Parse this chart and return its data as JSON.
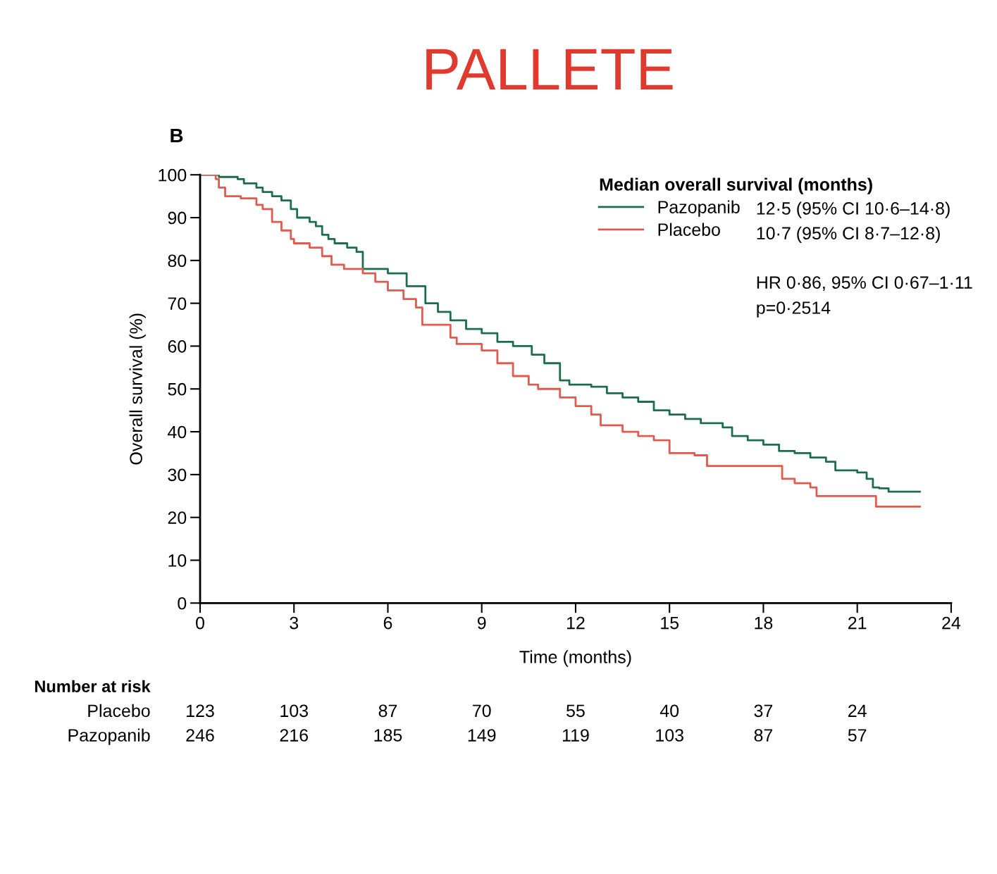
{
  "chart_data": {
    "type": "step",
    "title": "PALLETE",
    "xlabel": "Time (months)",
    "ylabel": "Overall survival (%)",
    "legend_title": "Median overall survival (months)",
    "xlim": [
      0,
      24
    ],
    "xticks": [
      0,
      3,
      6,
      9,
      12,
      15,
      18,
      21,
      24
    ],
    "ylim": [
      0,
      100
    ],
    "yticks": [
      0,
      10,
      20,
      30,
      40,
      50,
      60,
      70,
      80,
      90,
      100
    ],
    "grid": false,
    "legend": "top right",
    "marker": "none",
    "line_style": "solid",
    "series": [
      {
        "name": "Pazopanib",
        "color": "#1a6e4a",
        "x": [
          0,
          0.6,
          1.2,
          1.4,
          1.8,
          2.0,
          2.3,
          2.6,
          2.9,
          3.1,
          3.5,
          3.7,
          3.9,
          4.1,
          4.3,
          4.7,
          5.0,
          5.2,
          6.0,
          6.6,
          7.2,
          7.6,
          8.0,
          8.5,
          9.0,
          9.5,
          10.0,
          10.6,
          11.0,
          11.5,
          11.8,
          12.5,
          13.0,
          13.5,
          14.0,
          14.5,
          15.0,
          15.5,
          16.0,
          16.7,
          17.0,
          17.5,
          18.0,
          18.5,
          19.0,
          19.5,
          20.0,
          20.3,
          21.0,
          21.3,
          21.5,
          21.7,
          22.0,
          23.0
        ],
        "values": [
          100,
          99.5,
          99,
          98,
          97,
          96,
          95,
          94,
          92,
          90,
          89,
          88,
          86,
          85,
          84,
          83,
          82,
          78,
          77,
          74,
          70,
          68,
          66,
          64,
          63,
          61,
          60,
          58,
          56,
          52,
          51,
          50.5,
          49,
          48,
          47,
          45,
          44,
          43,
          42,
          41,
          39,
          38,
          37,
          35.5,
          35,
          34,
          33,
          31,
          30.5,
          29,
          27,
          26.8,
          26,
          26
        ]
      },
      {
        "name": "Placebo",
        "color": "#e05a4f",
        "x": [
          0,
          0.5,
          0.6,
          0.8,
          1.3,
          1.8,
          2.0,
          2.3,
          2.6,
          2.9,
          3.0,
          3.5,
          3.9,
          4.2,
          4.6,
          5.2,
          5.6,
          6.0,
          6.5,
          6.9,
          7.1,
          8.0,
          8.2,
          9.0,
          9.5,
          10.0,
          10.5,
          10.8,
          11.5,
          12.0,
          12.5,
          12.8,
          13.5,
          14.0,
          14.5,
          15.0,
          15.8,
          16.2,
          18.6,
          19.0,
          19.5,
          19.7,
          21.6,
          23.0
        ],
        "values": [
          100,
          99,
          97,
          95,
          94.5,
          93,
          92,
          89,
          87,
          85,
          84,
          83,
          81,
          79,
          78,
          77,
          75,
          73,
          71,
          69,
          65,
          62,
          60.5,
          59,
          56,
          53,
          51,
          50,
          48,
          46,
          44,
          41.5,
          40,
          39,
          38,
          35,
          34.5,
          32,
          29,
          28,
          27,
          25,
          22.5,
          22.5
        ]
      }
    ],
    "annotations": [
      "B",
      "12·5 (95% CI 10·6–14·8)",
      "10·7 (95% CI 8·7–12·8)",
      "HR 0·86, 95% CI 0·67–1·11",
      "p=0·2514",
      "Number at risk",
      "Placebo",
      "123",
      "103",
      "87",
      "70",
      "55",
      "40",
      "37",
      "24",
      "Pazopanib",
      "246",
      "216",
      "185",
      "149",
      "119",
      "103",
      "87",
      "57"
    ]
  }
}
